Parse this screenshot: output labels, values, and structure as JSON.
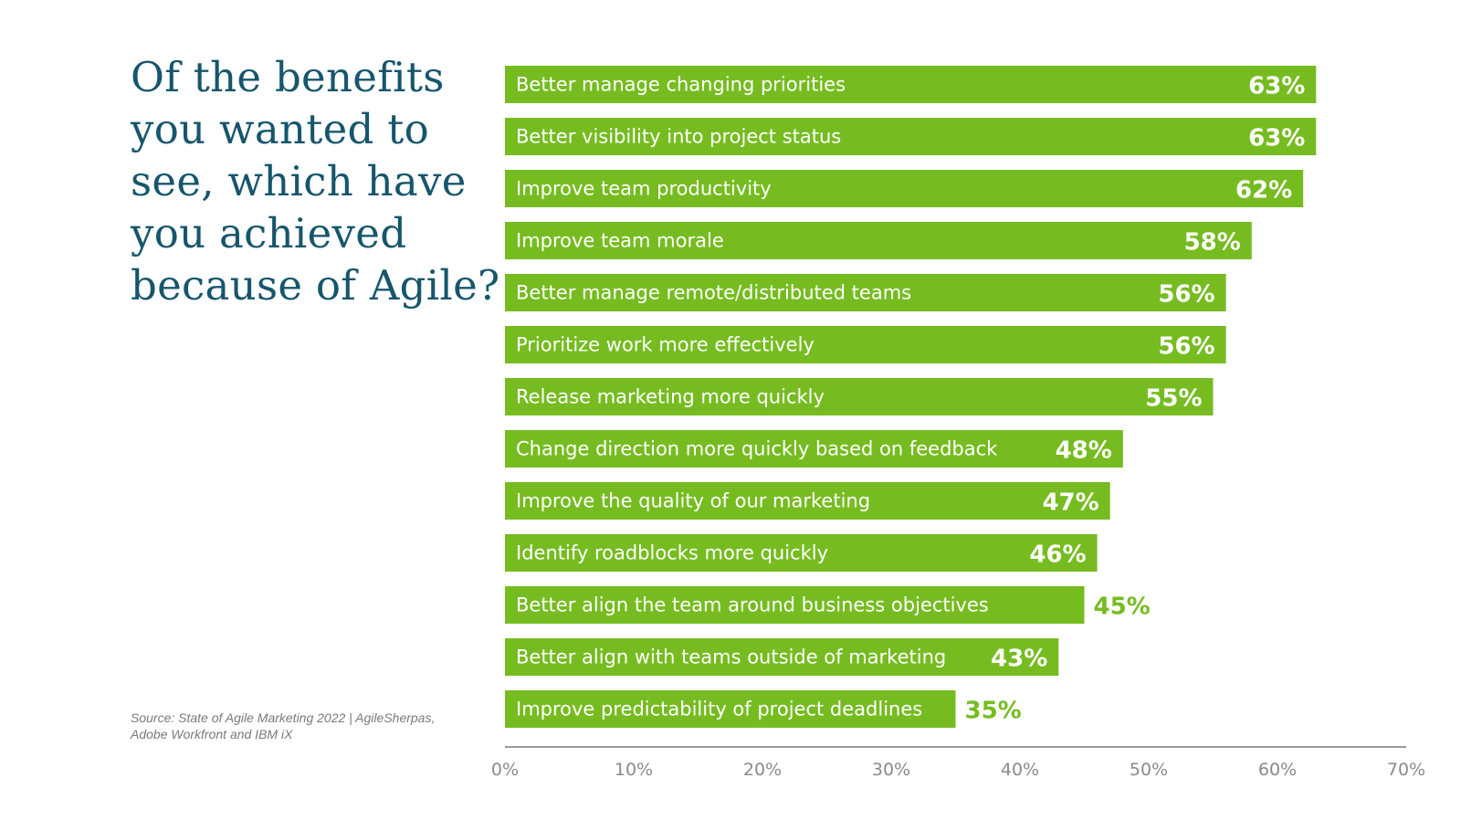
{
  "title_lines": [
    "Of the benefits",
    "you wanted to",
    "see, which have",
    "you achieved",
    "because of Agile?"
  ],
  "source_lines": [
    "Source: State of Agile Marketing 2022 | AgileSherpas,",
    "Adobe Workfront and IBM iX"
  ],
  "colors": {
    "bar": "#76bc21",
    "title": "#16566c",
    "axis": "#9a9a9a",
    "outside_value": "#76bc21"
  },
  "chart_data": {
    "type": "bar",
    "orientation": "horizontal",
    "title": "Of the benefits you wanted to see, which have you achieved because of Agile?",
    "categories": [
      "Better manage changing priorities",
      "Better visibility into project status",
      "Improve team productivity",
      "Improve team morale",
      "Better manage remote/distributed teams",
      "Prioritize work more effectively",
      "Release marketing more quickly",
      "Change direction more quickly based on feedback",
      "Improve the quality of our marketing",
      "Identify roadblocks more quickly",
      "Better align the team around business objectives",
      "Better align with teams outside of marketing",
      "Improve predictability of project deadlines"
    ],
    "values": [
      63,
      63,
      62,
      58,
      56,
      56,
      55,
      48,
      47,
      46,
      45,
      43,
      35
    ],
    "value_labels": [
      "63%",
      "63%",
      "62%",
      "58%",
      "56%",
      "56%",
      "55%",
      "48%",
      "47%",
      "46%",
      "45%",
      "43%",
      "35%"
    ],
    "xlim": [
      0,
      70
    ],
    "xticks": [
      0,
      10,
      20,
      30,
      40,
      50,
      60,
      70
    ],
    "xtick_labels": [
      "0%",
      "10%",
      "20%",
      "30%",
      "40%",
      "50%",
      "60%",
      "70%"
    ],
    "grid": false,
    "legend": "none"
  }
}
